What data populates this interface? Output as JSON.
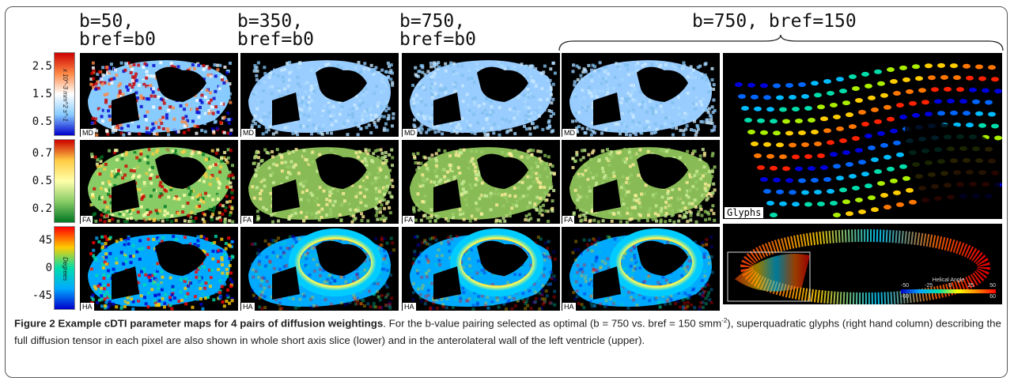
{
  "figure": {
    "column_headers": [
      {
        "b": "b=50,",
        "bref": "bref=b0"
      },
      {
        "b": "b=350,",
        "bref": "bref=b0"
      },
      {
        "b": "b=750,",
        "bref": "bref=b0"
      }
    ],
    "span_header": "b=750, bref=150",
    "rows": [
      {
        "tag": "MD",
        "ticks": [
          "2.5",
          "1.5",
          "0.5"
        ],
        "unit": "x 10^-3 mm^2 s^-1",
        "colors": [
          "#cc0000",
          "#ff8844",
          "#ffffff",
          "#88ccff",
          "#0000cc"
        ]
      },
      {
        "tag": "FA",
        "ticks": [
          "0.7",
          "0.5",
          "0.2"
        ],
        "unit": "",
        "colors": [
          "#cc0000",
          "#ffcc44",
          "#ffffaa",
          "#88cc66",
          "#007722"
        ]
      },
      {
        "tag": "HA",
        "ticks": [
          "45",
          "0",
          "-45"
        ],
        "unit": "Degrees",
        "colors": [
          "#ff0000",
          "#ffcc00",
          "#00ddaa",
          "#00aaff",
          "#0000cc"
        ]
      }
    ],
    "glyphs_label": "Glyphs",
    "helical_legend": {
      "title": "Helical Angle",
      "ticks_top": [
        "-50",
        "-25",
        "0",
        "25",
        "50"
      ],
      "ticks_bottom": [
        "-60",
        "60"
      ]
    }
  },
  "caption": {
    "bold": "Figure 2 Example cDTI parameter maps for 4 pairs of diffusion weightings",
    "text_1": ". For the b-value pairing selected as optimal (b = 750 vs. bref = 150 smm",
    "sup": "-2",
    "text_2": "), superquadratic glyphs (right hand column) describing the full diffusion tensor in each pixel are also shown in whole short axis slice (lower) and in the anterolateral wall of the left ventricle (upper)."
  }
}
